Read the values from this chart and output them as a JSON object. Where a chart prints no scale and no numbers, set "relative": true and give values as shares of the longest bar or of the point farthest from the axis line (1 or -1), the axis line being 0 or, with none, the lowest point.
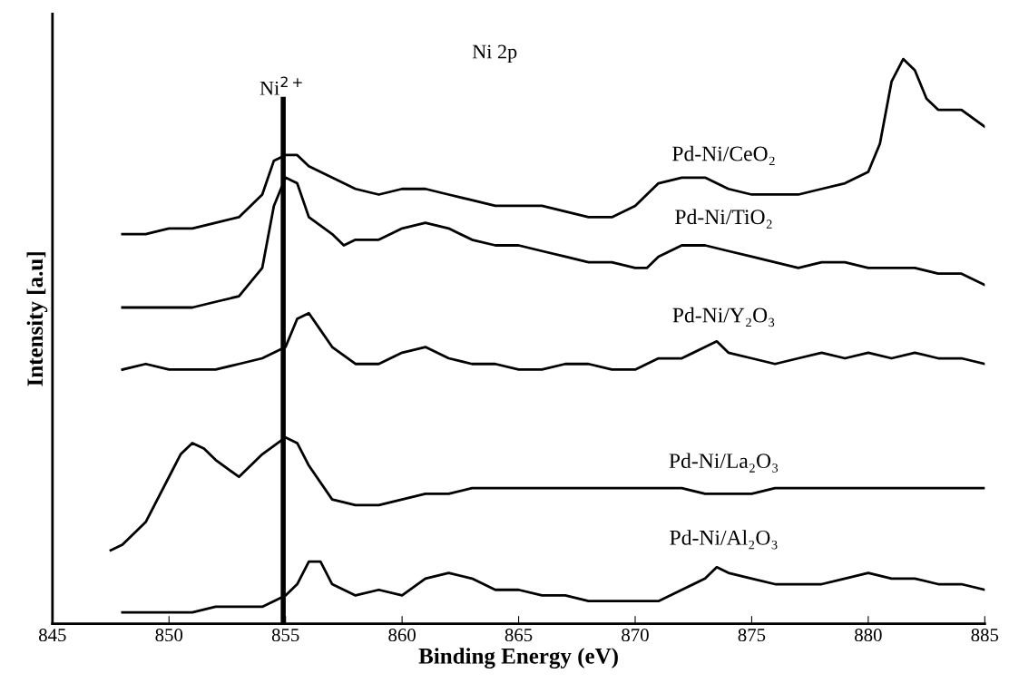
{
  "chart_data": {
    "type": "line",
    "xlabel": "Binding Energy (eV)",
    "ylabel": "Intensity [a.u]",
    "relative": true,
    "xlim": [
      845,
      885
    ],
    "xticks": [
      845,
      850,
      855,
      860,
      865,
      870,
      875,
      880,
      885
    ],
    "grid": false,
    "marker": "none",
    "line_style": "solid",
    "annotations": [
      "Ni 2p"
    ],
    "ref_lines": [
      {
        "axis": "x",
        "value": 854.9,
        "label": "Ni$^{2+}$",
        "color": "#000000"
      }
    ],
    "series": [
      {
        "name": "Pd-Ni/CeO₂",
        "color": "#000000",
        "x": [
          848,
          849,
          850,
          851,
          852,
          853,
          854,
          854.5,
          855,
          855.5,
          856,
          857,
          858,
          859,
          860,
          861,
          862,
          863,
          864,
          865,
          866,
          867,
          868,
          869,
          870,
          871,
          872,
          873,
          874,
          875,
          876,
          877,
          878,
          879,
          880,
          880.5,
          881,
          881.5,
          882,
          882.5,
          883,
          884,
          885
        ],
        "values": [
          0.69,
          0.69,
          0.7,
          0.7,
          0.71,
          0.72,
          0.76,
          0.82,
          0.83,
          0.83,
          0.81,
          0.79,
          0.77,
          0.76,
          0.77,
          0.77,
          0.76,
          0.75,
          0.74,
          0.74,
          0.74,
          0.73,
          0.72,
          0.72,
          0.74,
          0.78,
          0.79,
          0.79,
          0.77,
          0.76,
          0.76,
          0.76,
          0.77,
          0.78,
          0.8,
          0.85,
          0.96,
          1.0,
          0.98,
          0.93,
          0.91,
          0.91,
          0.88
        ]
      },
      {
        "name": "Pd-Ni/TiO₂",
        "color": "#000000",
        "x": [
          848,
          849,
          850,
          851,
          852,
          853,
          854,
          854.5,
          855,
          855.5,
          856,
          857,
          857.5,
          858,
          859,
          860,
          861,
          862,
          863,
          864,
          865,
          866,
          867,
          868,
          869,
          870,
          870.5,
          871,
          872,
          873,
          874,
          875,
          876,
          877,
          878,
          879,
          880,
          881,
          882,
          883,
          884,
          885
        ],
        "values": [
          0.56,
          0.56,
          0.56,
          0.56,
          0.57,
          0.58,
          0.63,
          0.74,
          0.79,
          0.78,
          0.72,
          0.69,
          0.67,
          0.68,
          0.68,
          0.7,
          0.71,
          0.7,
          0.68,
          0.67,
          0.67,
          0.66,
          0.65,
          0.64,
          0.64,
          0.63,
          0.63,
          0.65,
          0.67,
          0.67,
          0.66,
          0.65,
          0.64,
          0.63,
          0.64,
          0.64,
          0.63,
          0.63,
          0.63,
          0.62,
          0.62,
          0.6
        ]
      },
      {
        "name": "Pd-Ni/Y₂O₃",
        "color": "#000000",
        "x": [
          848,
          849,
          850,
          851,
          852,
          853,
          854,
          855,
          855.5,
          856,
          856.5,
          857,
          858,
          859,
          860,
          861,
          862,
          863,
          864,
          865,
          866,
          867,
          868,
          869,
          870,
          871,
          872,
          873,
          873.5,
          874,
          875,
          876,
          877,
          878,
          879,
          880,
          881,
          882,
          883,
          884,
          885
        ],
        "values": [
          0.45,
          0.46,
          0.45,
          0.45,
          0.45,
          0.46,
          0.47,
          0.49,
          0.54,
          0.55,
          0.52,
          0.49,
          0.46,
          0.46,
          0.48,
          0.49,
          0.47,
          0.46,
          0.46,
          0.45,
          0.45,
          0.46,
          0.46,
          0.45,
          0.45,
          0.47,
          0.47,
          0.49,
          0.5,
          0.48,
          0.47,
          0.46,
          0.47,
          0.48,
          0.47,
          0.48,
          0.47,
          0.48,
          0.47,
          0.47,
          0.46
        ]
      },
      {
        "name": "Pd-Ni/La₂O₃",
        "color": "#000000",
        "x": [
          847.5,
          848,
          849,
          850,
          850.5,
          851,
          851.5,
          852,
          853,
          854,
          855,
          855.5,
          856,
          857,
          858,
          859,
          860,
          861,
          862,
          863,
          864,
          865,
          866,
          867,
          868,
          869,
          870,
          871,
          872,
          873,
          874,
          875,
          876,
          877,
          878,
          879,
          880,
          881,
          882,
          883,
          884,
          885
        ],
        "values": [
          0.13,
          0.14,
          0.18,
          0.26,
          0.3,
          0.32,
          0.31,
          0.29,
          0.26,
          0.3,
          0.33,
          0.32,
          0.28,
          0.22,
          0.21,
          0.21,
          0.22,
          0.23,
          0.23,
          0.24,
          0.24,
          0.24,
          0.24,
          0.24,
          0.24,
          0.24,
          0.24,
          0.24,
          0.24,
          0.23,
          0.23,
          0.23,
          0.24,
          0.24,
          0.24,
          0.24,
          0.24,
          0.24,
          0.24,
          0.24,
          0.24,
          0.24
        ]
      },
      {
        "name": "Pd-Ni/Al₂O₃",
        "color": "#000000",
        "x": [
          848,
          849,
          850,
          851,
          852,
          853,
          854,
          855,
          855.5,
          856,
          856.5,
          857,
          858,
          859,
          860,
          861,
          862,
          863,
          864,
          865,
          866,
          867,
          868,
          869,
          870,
          871,
          872,
          873,
          873.5,
          874,
          875,
          876,
          877,
          878,
          879,
          880,
          881,
          882,
          883,
          884,
          885
        ],
        "values": [
          0.02,
          0.02,
          0.02,
          0.02,
          0.03,
          0.03,
          0.03,
          0.05,
          0.07,
          0.11,
          0.11,
          0.07,
          0.05,
          0.06,
          0.05,
          0.08,
          0.09,
          0.08,
          0.06,
          0.06,
          0.05,
          0.05,
          0.04,
          0.04,
          0.04,
          0.04,
          0.06,
          0.08,
          0.1,
          0.09,
          0.08,
          0.07,
          0.07,
          0.07,
          0.08,
          0.09,
          0.08,
          0.08,
          0.07,
          0.07,
          0.06
        ]
      }
    ]
  }
}
